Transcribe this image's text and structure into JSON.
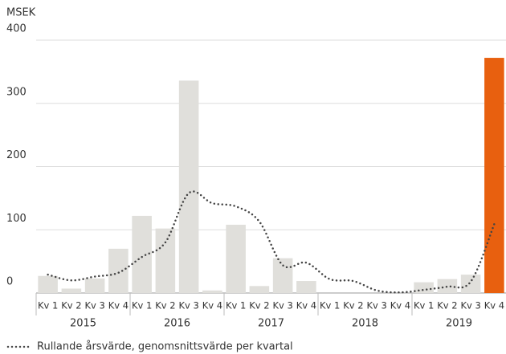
{
  "chart_data": {
    "type": "bar",
    "y_label": "MSEK",
    "categories": [
      "Kv 1",
      "Kv 2",
      "Kv 3",
      "Kv 4",
      "Kv 1",
      "Kv 2",
      "Kv 3",
      "Kv 4",
      "Kv 1",
      "Kv 2",
      "Kv 3",
      "Kv 4",
      "Kv 1",
      "Kv 2",
      "Kv 3",
      "Kv 4",
      "Kv 1",
      "Kv 2",
      "Kv 3",
      "Kv 4"
    ],
    "groups": [
      "2015",
      "2016",
      "2017",
      "2018",
      "2019"
    ],
    "series": [
      {
        "type": "bar",
        "color": "#e0dfdb",
        "colors": [
          "#e0dfdb",
          "#e0dfdb",
          "#e0dfdb",
          "#e0dfdb",
          "#e0dfdb",
          "#e0dfdb",
          "#e0dfdb",
          "#e0dfdb",
          "#e0dfdb",
          "#e0dfdb",
          "#e0dfdb",
          "#e0dfdb",
          "#e0dfdb",
          "#e0dfdb",
          "#e0dfdb",
          "#e0dfdb",
          "#e0dfdb",
          "#e0dfdb",
          "#e0dfdb",
          "#e8600f"
        ],
        "values": [
          27,
          7,
          23,
          70,
          122,
          102,
          336,
          4,
          108,
          11,
          55,
          19,
          0,
          0,
          0,
          0,
          17,
          22,
          29,
          372
        ]
      },
      {
        "type": "line",
        "name": "Rullande årsvärde, genomsnittsvärde per kvartal",
        "color": "#444444",
        "dotted": true,
        "values": [
          29,
          20,
          26,
          32,
          57,
          80,
          158,
          142,
          137,
          113,
          44,
          48,
          22,
          19,
          4,
          1,
          5,
          10,
          18,
          109
        ]
      }
    ],
    "ylim": [
      0,
      400
    ],
    "yticks": [
      0,
      100,
      200,
      300,
      400
    ],
    "grid": true
  }
}
